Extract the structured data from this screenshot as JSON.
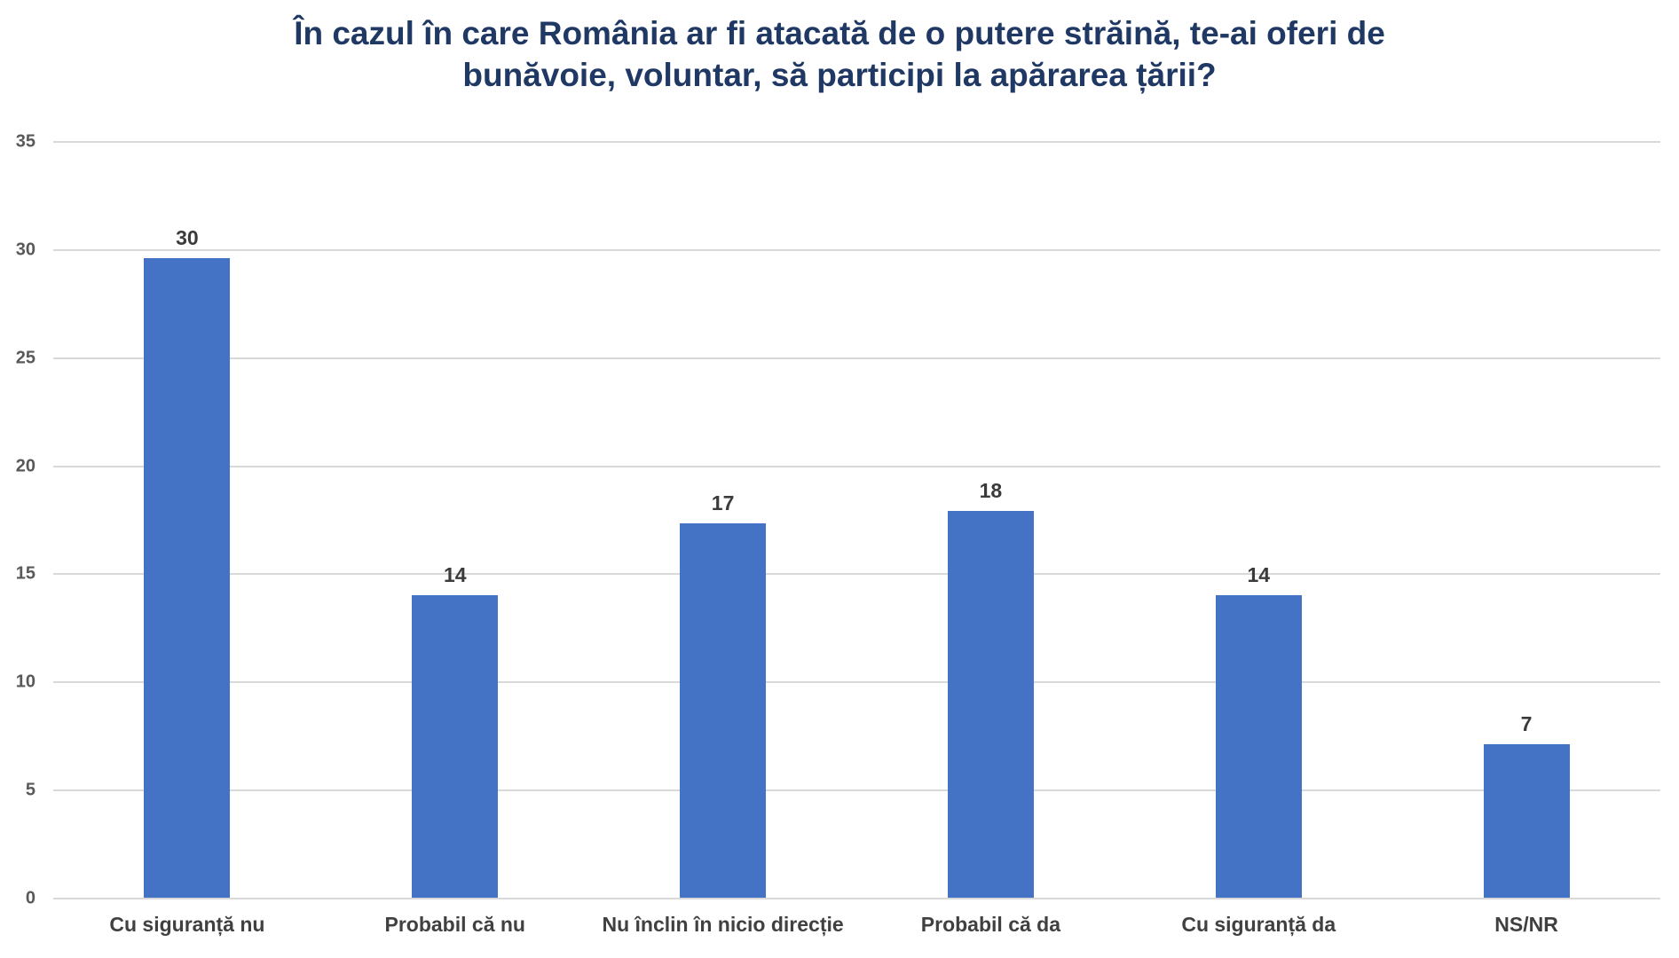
{
  "title": {
    "line1": "În cazul în care România ar fi atacată de o putere străină, te-ai oferi de",
    "line2": "bunăvoie, voluntar, să participi la apărarea țării?",
    "color": "#1F3864"
  },
  "chart_data": {
    "type": "bar",
    "title": "În cazul în care România ar fi atacată de o putere străină, te-ai oferi de bunăvoie, voluntar, să participi la apărarea țării?",
    "categories": [
      "Cu siguranță nu",
      "Probabil că nu",
      "Nu înclin în nicio direcție",
      "Probabil că da",
      "Cu siguranță da",
      "NS/NR"
    ],
    "values": [
      30,
      14,
      17,
      18,
      14,
      7
    ],
    "data_labels": [
      "30",
      "14",
      "17",
      "18",
      "14",
      "7"
    ],
    "bar_heights_precise": [
      29.6,
      14.0,
      17.3,
      17.9,
      14.0,
      7.1
    ],
    "xlabel": "",
    "ylabel": "",
    "ylim": [
      0,
      35
    ],
    "yticks": [
      0,
      5,
      10,
      15,
      20,
      25,
      30,
      35
    ],
    "grid": true,
    "legend": false,
    "colors": {
      "bar_fill": "#4472C4",
      "gridline": "#D9D9D9",
      "y_tick_label": "#595959",
      "category_label": "#404040",
      "value_label": "#3B3B3B",
      "background": "#FFFFFF"
    }
  }
}
